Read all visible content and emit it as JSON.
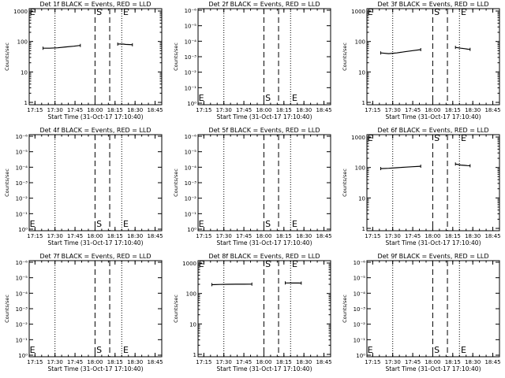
{
  "chart_data": [
    {
      "type": "line",
      "title": "Det 1f BLACK = Events, RED = LLD",
      "xlabel": "Start Time (31-Oct-17 17:10:40)",
      "ylabel": "Counts/sec",
      "yscale": "log",
      "y_tick_labels": [
        "1",
        "10",
        "100",
        "1000"
      ],
      "x_tick_labels": [
        "17:15",
        "17:30",
        "17:45",
        "18:00",
        "18:15",
        "18:30",
        "18:45"
      ],
      "markers": [
        "E",
        "S",
        "E"
      ],
      "segments": [
        {
          "x": [
            "17:21",
            "17:26",
            "17:32",
            "17:38",
            "17:44",
            "17:49"
          ],
          "y": [
            60,
            60,
            62,
            66,
            70,
            74
          ]
        },
        {
          "x": [
            "18:17",
            "18:19",
            "18:21",
            "18:23",
            "18:26",
            "18:28"
          ],
          "y": [
            82,
            83,
            82,
            80,
            79,
            78
          ]
        }
      ]
    },
    {
      "type": "line",
      "title": "Det 2f BLACK = Events, RED = LLD",
      "xlabel": "Start Time (31-Oct-17 17:10:40)",
      "ylabel": "Counts/sec",
      "yscale": "log",
      "y_tick_labels": [
        "10⁰",
        "10⁻¹",
        "10⁻²",
        "10⁻³",
        "10⁻⁴",
        "10⁻⁵",
        "10⁻⁶"
      ],
      "x_tick_labels": [
        "17:15",
        "17:30",
        "17:45",
        "18:00",
        "18:15",
        "18:30",
        "18:45"
      ],
      "markers": [
        "E",
        "S",
        "E"
      ],
      "segments": []
    },
    {
      "type": "line",
      "title": "Det 3f BLACK = Events, RED = LLD",
      "xlabel": "Start Time (31-Oct-17 17:10:40)",
      "ylabel": "Counts/sec",
      "yscale": "log",
      "y_tick_labels": [
        "1",
        "10",
        "100",
        "1000"
      ],
      "x_tick_labels": [
        "17:15",
        "17:30",
        "17:45",
        "18:00",
        "18:15",
        "18:30",
        "18:45"
      ],
      "markers": [
        "E",
        "S",
        "E"
      ],
      "segments": [
        {
          "x": [
            "17:21",
            "17:27",
            "17:33",
            "17:39",
            "17:45",
            "17:51"
          ],
          "y": [
            42,
            40,
            42,
            46,
            50,
            54
          ]
        },
        {
          "x": [
            "18:17",
            "18:19",
            "18:21",
            "18:24",
            "18:26",
            "18:28"
          ],
          "y": [
            64,
            62,
            60,
            58,
            56,
            55
          ]
        }
      ]
    },
    {
      "type": "line",
      "title": "Det 4f BLACK = Events, RED = LLD",
      "xlabel": "Start Time (31-Oct-17 17:10:40)",
      "ylabel": "Counts/sec",
      "yscale": "log",
      "y_tick_labels": [
        "10⁰",
        "10⁻¹",
        "10⁻²",
        "10⁻³",
        "10⁻⁴",
        "10⁻⁵",
        "10⁻⁶"
      ],
      "x_tick_labels": [
        "17:15",
        "17:30",
        "17:45",
        "18:00",
        "18:15",
        "18:30",
        "18:45"
      ],
      "markers": [
        "E",
        "S",
        "E"
      ],
      "segments": []
    },
    {
      "type": "line",
      "title": "Det 5f BLACK = Events, RED = LLD",
      "xlabel": "Start Time (31-Oct-17 17:10:40)",
      "ylabel": "Counts/sec",
      "yscale": "log",
      "y_tick_labels": [
        "10⁰",
        "10⁻¹",
        "10⁻²",
        "10⁻³",
        "10⁻⁴",
        "10⁻⁵",
        "10⁻⁶"
      ],
      "x_tick_labels": [
        "17:15",
        "17:30",
        "17:45",
        "18:00",
        "18:15",
        "18:30",
        "18:45"
      ],
      "markers": [
        "E",
        "S",
        "E"
      ],
      "segments": []
    },
    {
      "type": "line",
      "title": "Det 6f BLACK = Events, RED = LLD",
      "xlabel": "Start Time (31-Oct-17 17:10:40)",
      "ylabel": "Counts/sec",
      "yscale": "log",
      "y_tick_labels": [
        "1",
        "10",
        "100",
        "1000"
      ],
      "x_tick_labels": [
        "17:15",
        "17:30",
        "17:45",
        "18:00",
        "18:15",
        "18:30",
        "18:45"
      ],
      "markers": [
        "E",
        "S",
        "E"
      ],
      "segments": [
        {
          "x": [
            "17:21",
            "17:27",
            "17:33",
            "17:39",
            "17:45",
            "17:51"
          ],
          "y": [
            92,
            94,
            98,
            102,
            106,
            110
          ]
        },
        {
          "x": [
            "18:17",
            "18:19",
            "18:21",
            "18:24",
            "18:26",
            "18:28"
          ],
          "y": [
            130,
            125,
            120,
            117,
            115,
            114
          ]
        }
      ]
    },
    {
      "type": "line",
      "title": "Det 7f BLACK = Events, RED = LLD",
      "xlabel": "Start Time (31-Oct-17 17:10:40)",
      "ylabel": "Counts/sec",
      "yscale": "log",
      "y_tick_labels": [
        "10⁰",
        "10⁻¹",
        "10⁻²",
        "10⁻³",
        "10⁻⁴",
        "10⁻⁵",
        "10⁻⁶"
      ],
      "x_tick_labels": [
        "17:15",
        "17:30",
        "17:45",
        "18:00",
        "18:15",
        "18:30",
        "18:45"
      ],
      "markers": [
        "E",
        "S",
        "E"
      ],
      "segments": []
    },
    {
      "type": "line",
      "title": "Det 8f BLACK = Events, RED = LLD",
      "xlabel": "Start Time (31-Oct-17 17:10:40)",
      "ylabel": "Counts/sec",
      "yscale": "log",
      "y_tick_labels": [
        "1",
        "10",
        "100",
        "1000"
      ],
      "x_tick_labels": [
        "17:15",
        "17:30",
        "17:45",
        "18:00",
        "18:15",
        "18:30",
        "18:45"
      ],
      "markers": [
        "E",
        "S",
        "E"
      ],
      "segments": [
        {
          "x": [
            "17:21",
            "17:27",
            "17:33",
            "17:39",
            "17:45",
            "17:51"
          ],
          "y": [
            195,
            198,
            200,
            201,
            202,
            203
          ]
        },
        {
          "x": [
            "18:16",
            "18:19",
            "18:21",
            "18:24",
            "18:26",
            "18:28"
          ],
          "y": [
            222,
            222,
            221,
            220,
            220,
            219
          ]
        }
      ]
    },
    {
      "type": "line",
      "title": "Det 9f BLACK = Events, RED = LLD",
      "xlabel": "Start Time (31-Oct-17 17:10:40)",
      "ylabel": "Counts/sec",
      "yscale": "log",
      "y_tick_labels": [
        "10⁰",
        "10⁻¹",
        "10⁻²",
        "10⁻³",
        "10⁻⁴",
        "10⁻⁵",
        "10⁻⁶"
      ],
      "x_tick_labels": [
        "17:15",
        "17:30",
        "17:45",
        "18:00",
        "18:15",
        "18:30",
        "18:45"
      ],
      "markers": [
        "E",
        "S",
        "E"
      ],
      "segments": []
    }
  ]
}
